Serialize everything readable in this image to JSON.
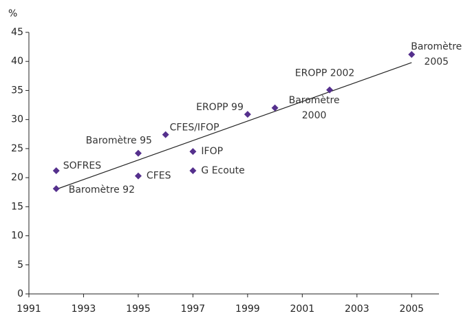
{
  "chart_data": {
    "type": "scatter",
    "y_label": "%",
    "color": "#55308d",
    "x": [
      1992,
      1992,
      1995,
      1995,
      1996,
      1997,
      1997,
      1999,
      2000,
      2002,
      2005
    ],
    "values": [
      21.2,
      18.1,
      24.2,
      20.3,
      27.4,
      24.5,
      21.2,
      30.9,
      32,
      35.1,
      41.2
    ],
    "labels": [
      [
        "SOFRES"
      ],
      [
        "Baromètre 92"
      ],
      [
        "Baromètre 95"
      ],
      [
        "CFES"
      ],
      [
        "CFES/IFOP"
      ],
      [
        "IFOP"
      ],
      [
        "G Ecoute"
      ],
      [
        "EROPP 99"
      ],
      [
        "Baromètre",
        "2000"
      ],
      [
        "EROPP 2002"
      ],
      [
        "Baromètre",
        "2005"
      ]
    ],
    "trend": {
      "x": [
        1992,
        2005
      ],
      "values": [
        18,
        39.8
      ]
    },
    "xlim": [
      1991,
      2006
    ],
    "xticks": [
      1991,
      1993,
      1995,
      1997,
      1999,
      2001,
      2003,
      2005
    ],
    "ylim": [
      0,
      45
    ],
    "yticks": [
      0,
      5,
      10,
      15,
      20,
      25,
      30,
      35,
      40,
      45
    ]
  }
}
